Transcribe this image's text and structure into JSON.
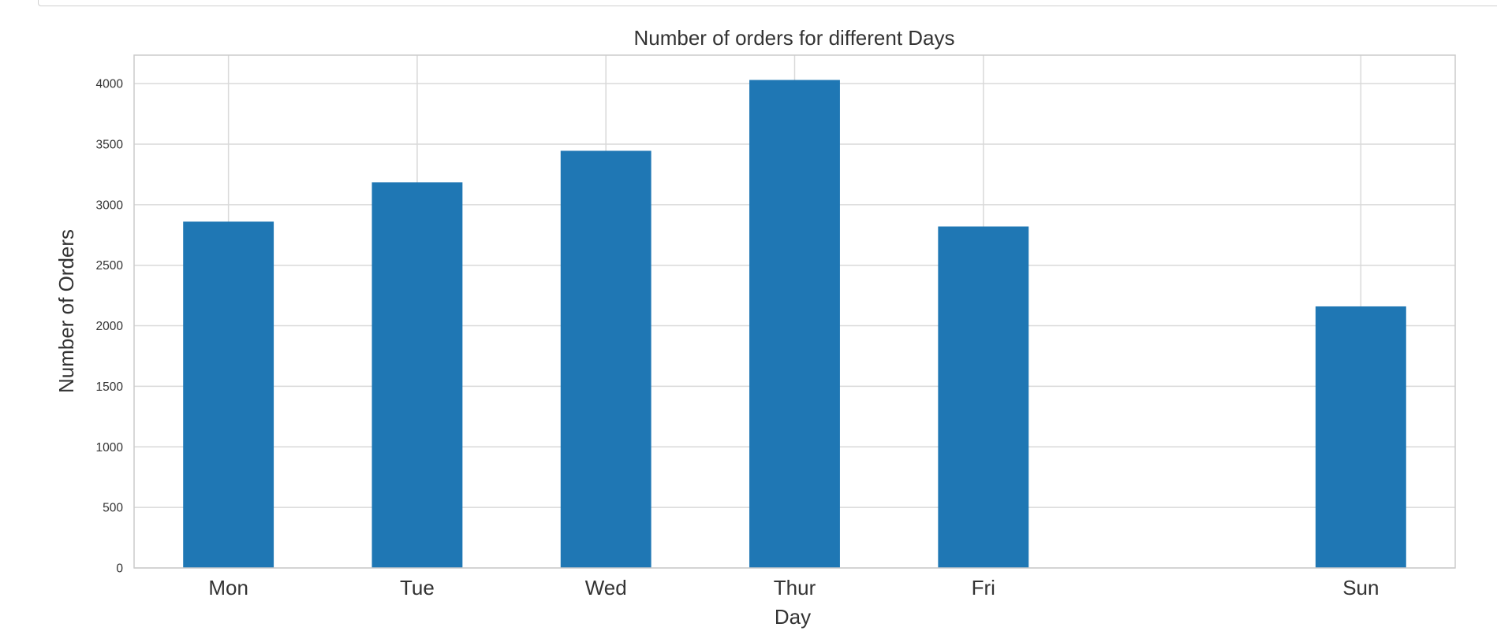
{
  "chart_data": {
    "type": "bar",
    "title": "Number of orders for different Days",
    "xlabel": "Day",
    "ylabel": "Number of Orders",
    "categories": [
      "Mon",
      "Tue",
      "Wed",
      "Thur",
      "Fri",
      "Sun"
    ],
    "x_positions": [
      0,
      1,
      2,
      3,
      4,
      6
    ],
    "values": [
      2860,
      3185,
      3445,
      4030,
      2820,
      2160
    ],
    "yticks": [
      0,
      500,
      1000,
      1500,
      2000,
      2500,
      3000,
      3500,
      4000
    ],
    "ylim": [
      0,
      4235
    ],
    "xlim": [
      -0.5,
      6.5
    ],
    "grid": true,
    "bar_color": "#1f77b4",
    "grid_color": "#d9d9d9",
    "spine_color": "#cccccc"
  }
}
